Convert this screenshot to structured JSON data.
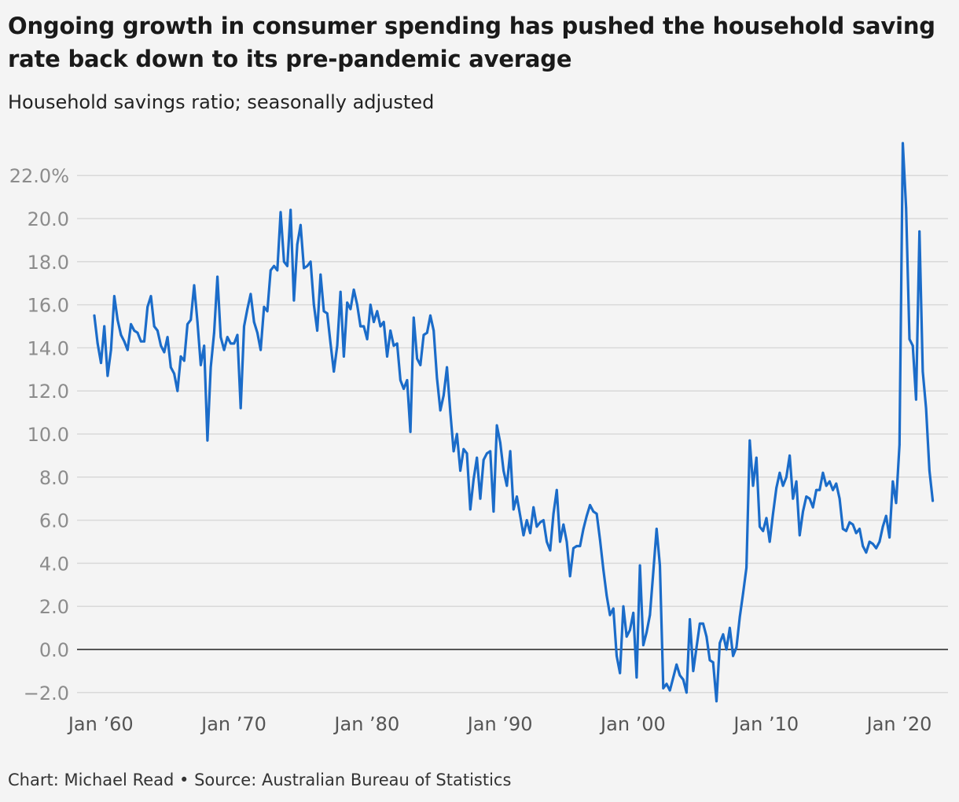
{
  "title": "Ongoing growth in consumer spending has pushed the household saving rate back down to its pre-pandemic average",
  "subtitle": "Household savings ratio; seasonally adjusted",
  "footer": "Chart: Michael Read • Source: Australian Bureau of Statistics",
  "colors": {
    "line": "#1b6cc9",
    "grid": "#d9d9d9",
    "zero_line": "#222222"
  },
  "chart_data": {
    "type": "line",
    "title": "Ongoing growth in consumer spending has pushed the household saving rate back down to its pre-pandemic average",
    "subtitle": "Household savings ratio; seasonally adjusted",
    "xlabel": "",
    "ylabel": "",
    "x_range": [
      1959.75,
      2022.5
    ],
    "ylim": [
      -2.0,
      23.5
    ],
    "y_ticks": [
      -2,
      0,
      2,
      4,
      6,
      8,
      10,
      12,
      14,
      16,
      18,
      20,
      22
    ],
    "y_tick_labels": [
      "−2.0",
      "0.0",
      "2.0",
      "4.0",
      "6.0",
      "8.0",
      "10.0",
      "12.0",
      "14.0",
      "16.0",
      "18.0",
      "20.0",
      "22.0%"
    ],
    "x_ticks": [
      1960,
      1970,
      1980,
      1990,
      2000,
      2010,
      2020
    ],
    "x_tick_labels": [
      "Jan ’60",
      "Jan ’70",
      "Jan ’80",
      "Jan ’90",
      "Jan ’00",
      "Jan ’10",
      "Jan ’20"
    ],
    "grid": true,
    "series": [
      {
        "points": [
          [
            1959.75,
            15.5
          ],
          [
            1960.0,
            14.2
          ],
          [
            1960.25,
            13.3
          ],
          [
            1960.5,
            15.0
          ],
          [
            1960.75,
            12.7
          ],
          [
            1961.0,
            13.9
          ],
          [
            1961.25,
            16.4
          ],
          [
            1961.5,
            15.3
          ],
          [
            1961.75,
            14.6
          ],
          [
            1962.0,
            14.3
          ],
          [
            1962.25,
            13.9
          ],
          [
            1962.5,
            15.1
          ],
          [
            1962.75,
            14.8
          ],
          [
            1963.0,
            14.7
          ],
          [
            1963.25,
            14.3
          ],
          [
            1963.5,
            14.3
          ],
          [
            1963.75,
            15.9
          ],
          [
            1964.0,
            16.4
          ],
          [
            1964.25,
            15.0
          ],
          [
            1964.5,
            14.8
          ],
          [
            1964.75,
            14.1
          ],
          [
            1965.0,
            13.8
          ],
          [
            1965.25,
            14.5
          ],
          [
            1965.5,
            13.1
          ],
          [
            1965.75,
            12.8
          ],
          [
            1966.0,
            12.0
          ],
          [
            1966.25,
            13.6
          ],
          [
            1966.5,
            13.4
          ],
          [
            1966.75,
            15.1
          ],
          [
            1967.0,
            15.3
          ],
          [
            1967.25,
            16.9
          ],
          [
            1967.5,
            15.2
          ],
          [
            1967.75,
            13.2
          ],
          [
            1968.0,
            14.1
          ],
          [
            1968.25,
            9.7
          ],
          [
            1968.5,
            13.1
          ],
          [
            1968.75,
            14.7
          ],
          [
            1969.0,
            17.3
          ],
          [
            1969.25,
            14.5
          ],
          [
            1969.5,
            13.9
          ],
          [
            1969.75,
            14.5
          ],
          [
            1970.0,
            14.2
          ],
          [
            1970.25,
            14.2
          ],
          [
            1970.5,
            14.6
          ],
          [
            1970.75,
            11.2
          ],
          [
            1971.0,
            15.0
          ],
          [
            1971.25,
            15.8
          ],
          [
            1971.5,
            16.5
          ],
          [
            1971.75,
            15.2
          ],
          [
            1972.0,
            14.7
          ],
          [
            1972.25,
            13.9
          ],
          [
            1972.5,
            15.9
          ],
          [
            1972.75,
            15.7
          ],
          [
            1973.0,
            17.6
          ],
          [
            1973.25,
            17.8
          ],
          [
            1973.5,
            17.6
          ],
          [
            1973.75,
            20.3
          ],
          [
            1974.0,
            18.0
          ],
          [
            1974.25,
            17.8
          ],
          [
            1974.5,
            20.4
          ],
          [
            1974.75,
            16.2
          ],
          [
            1975.0,
            18.8
          ],
          [
            1975.25,
            19.7
          ],
          [
            1975.5,
            17.7
          ],
          [
            1975.75,
            17.8
          ],
          [
            1976.0,
            18.0
          ],
          [
            1976.25,
            16.0
          ],
          [
            1976.5,
            14.8
          ],
          [
            1976.75,
            17.4
          ],
          [
            1977.0,
            15.7
          ],
          [
            1977.25,
            15.6
          ],
          [
            1977.5,
            14.2
          ],
          [
            1977.75,
            12.9
          ],
          [
            1978.0,
            14.1
          ],
          [
            1978.25,
            16.6
          ],
          [
            1978.5,
            13.6
          ],
          [
            1978.75,
            16.1
          ],
          [
            1979.0,
            15.8
          ],
          [
            1979.25,
            16.7
          ],
          [
            1979.5,
            16.0
          ],
          [
            1979.75,
            15.0
          ],
          [
            1980.0,
            15.0
          ],
          [
            1980.25,
            14.4
          ],
          [
            1980.5,
            16.0
          ],
          [
            1980.75,
            15.2
          ],
          [
            1981.0,
            15.7
          ],
          [
            1981.25,
            15.0
          ],
          [
            1981.5,
            15.2
          ],
          [
            1981.75,
            13.6
          ],
          [
            1982.0,
            14.8
          ],
          [
            1982.25,
            14.1
          ],
          [
            1982.5,
            14.2
          ],
          [
            1982.75,
            12.5
          ],
          [
            1983.0,
            12.1
          ],
          [
            1983.25,
            12.5
          ],
          [
            1983.5,
            10.1
          ],
          [
            1983.75,
            15.4
          ],
          [
            1984.0,
            13.5
          ],
          [
            1984.25,
            13.2
          ],
          [
            1984.5,
            14.6
          ],
          [
            1984.75,
            14.7
          ],
          [
            1985.0,
            15.5
          ],
          [
            1985.25,
            14.8
          ],
          [
            1985.5,
            12.6
          ],
          [
            1985.75,
            11.1
          ],
          [
            1986.0,
            11.8
          ],
          [
            1986.25,
            13.1
          ],
          [
            1986.5,
            11.0
          ],
          [
            1986.75,
            9.2
          ],
          [
            1987.0,
            10.0
          ],
          [
            1987.25,
            8.3
          ],
          [
            1987.5,
            9.3
          ],
          [
            1987.75,
            9.1
          ],
          [
            1988.0,
            6.5
          ],
          [
            1988.25,
            7.9
          ],
          [
            1988.5,
            8.9
          ],
          [
            1988.75,
            7.0
          ],
          [
            1989.0,
            8.8
          ],
          [
            1989.25,
            9.1
          ],
          [
            1989.5,
            9.2
          ],
          [
            1989.75,
            6.4
          ],
          [
            1990.0,
            10.4
          ],
          [
            1990.25,
            9.6
          ],
          [
            1990.5,
            8.3
          ],
          [
            1990.75,
            7.6
          ],
          [
            1991.0,
            9.2
          ],
          [
            1991.25,
            6.5
          ],
          [
            1991.5,
            7.1
          ],
          [
            1991.75,
            6.2
          ],
          [
            1992.0,
            5.3
          ],
          [
            1992.25,
            6.0
          ],
          [
            1992.5,
            5.4
          ],
          [
            1992.75,
            6.6
          ],
          [
            1993.0,
            5.7
          ],
          [
            1993.25,
            5.9
          ],
          [
            1993.5,
            6.0
          ],
          [
            1993.75,
            5.0
          ],
          [
            1994.0,
            4.6
          ],
          [
            1994.25,
            6.3
          ],
          [
            1994.5,
            7.4
          ],
          [
            1994.75,
            5.0
          ],
          [
            1995.0,
            5.8
          ],
          [
            1995.25,
            5.0
          ],
          [
            1995.5,
            3.4
          ],
          [
            1995.75,
            4.7
          ],
          [
            1996.0,
            4.8
          ],
          [
            1996.25,
            4.8
          ],
          [
            1996.5,
            5.6
          ],
          [
            1996.75,
            6.2
          ],
          [
            1997.0,
            6.7
          ],
          [
            1997.25,
            6.4
          ],
          [
            1997.5,
            6.3
          ],
          [
            1997.75,
            5.1
          ],
          [
            1998.0,
            3.7
          ],
          [
            1998.25,
            2.5
          ],
          [
            1998.5,
            1.6
          ],
          [
            1998.75,
            1.9
          ],
          [
            1999.0,
            -0.3
          ],
          [
            1999.25,
            -1.1
          ],
          [
            1999.5,
            2.0
          ],
          [
            1999.75,
            0.6
          ],
          [
            2000.0,
            0.9
          ],
          [
            2000.25,
            1.7
          ],
          [
            2000.5,
            -1.3
          ],
          [
            2000.75,
            3.9
          ],
          [
            2001.0,
            0.2
          ],
          [
            2001.25,
            0.8
          ],
          [
            2001.5,
            1.6
          ],
          [
            2001.75,
            3.6
          ],
          [
            2002.0,
            5.6
          ],
          [
            2002.25,
            3.9
          ],
          [
            2002.5,
            -1.8
          ],
          [
            2002.75,
            -1.6
          ],
          [
            2003.0,
            -1.9
          ],
          [
            2003.25,
            -1.3
          ],
          [
            2003.5,
            -0.7
          ],
          [
            2003.75,
            -1.2
          ],
          [
            2004.0,
            -1.4
          ],
          [
            2004.25,
            -2.0
          ],
          [
            2004.5,
            1.4
          ],
          [
            2004.75,
            -1.0
          ],
          [
            2005.0,
            0.1
          ],
          [
            2005.25,
            1.2
          ],
          [
            2005.5,
            1.2
          ],
          [
            2005.75,
            0.6
          ],
          [
            2006.0,
            -0.5
          ],
          [
            2006.25,
            -0.6
          ],
          [
            2006.5,
            -2.4
          ],
          [
            2006.75,
            0.3
          ],
          [
            2007.0,
            0.7
          ],
          [
            2007.25,
            0.0
          ],
          [
            2007.5,
            1.0
          ],
          [
            2007.75,
            -0.3
          ],
          [
            2008.0,
            0.1
          ],
          [
            2008.25,
            1.5
          ],
          [
            2008.5,
            2.6
          ],
          [
            2008.75,
            3.8
          ],
          [
            2009.0,
            9.7
          ],
          [
            2009.25,
            7.6
          ],
          [
            2009.5,
            8.9
          ],
          [
            2009.75,
            5.7
          ],
          [
            2010.0,
            5.5
          ],
          [
            2010.25,
            6.1
          ],
          [
            2010.5,
            5.0
          ],
          [
            2010.75,
            6.3
          ],
          [
            2011.0,
            7.5
          ],
          [
            2011.25,
            8.2
          ],
          [
            2011.5,
            7.6
          ],
          [
            2011.75,
            8.0
          ],
          [
            2012.0,
            9.0
          ],
          [
            2012.25,
            7.0
          ],
          [
            2012.5,
            7.8
          ],
          [
            2012.75,
            5.3
          ],
          [
            2013.0,
            6.4
          ],
          [
            2013.25,
            7.1
          ],
          [
            2013.5,
            7.0
          ],
          [
            2013.75,
            6.6
          ],
          [
            2014.0,
            7.4
          ],
          [
            2014.25,
            7.4
          ],
          [
            2014.5,
            8.2
          ],
          [
            2014.75,
            7.6
          ],
          [
            2015.0,
            7.8
          ],
          [
            2015.25,
            7.4
          ],
          [
            2015.5,
            7.7
          ],
          [
            2015.75,
            7.0
          ],
          [
            2016.0,
            5.6
          ],
          [
            2016.25,
            5.5
          ],
          [
            2016.5,
            5.9
          ],
          [
            2016.75,
            5.8
          ],
          [
            2017.0,
            5.4
          ],
          [
            2017.25,
            5.6
          ],
          [
            2017.5,
            4.8
          ],
          [
            2017.75,
            4.5
          ],
          [
            2018.0,
            5.0
          ],
          [
            2018.25,
            4.9
          ],
          [
            2018.5,
            4.7
          ],
          [
            2018.75,
            5.0
          ],
          [
            2019.0,
            5.7
          ],
          [
            2019.25,
            6.2
          ],
          [
            2019.5,
            5.2
          ],
          [
            2019.75,
            7.8
          ],
          [
            2020.0,
            6.8
          ],
          [
            2020.25,
            9.5
          ],
          [
            2020.5,
            23.5
          ],
          [
            2020.75,
            20.5
          ],
          [
            2021.0,
            14.4
          ],
          [
            2021.25,
            14.1
          ],
          [
            2021.5,
            11.6
          ],
          [
            2021.75,
            19.4
          ],
          [
            2022.0,
            12.9
          ],
          [
            2022.25,
            11.2
          ],
          [
            2022.5,
            8.3
          ],
          [
            2022.75,
            6.9
          ]
        ]
      }
    ]
  }
}
